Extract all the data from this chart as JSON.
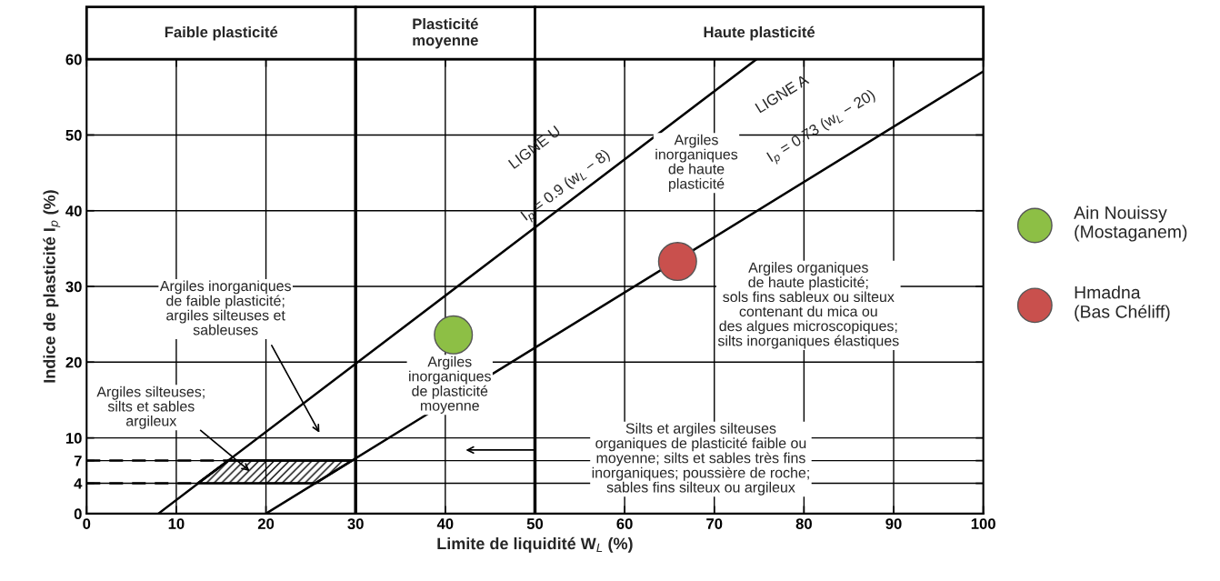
{
  "chart_data": {
    "type": "scatter",
    "xlabel": "Limite de liquidité W$_{L}$ (%)",
    "ylabel": "Indice de plasticité I$_{p}$ (%)",
    "xlim": [
      0,
      100
    ],
    "ylim": [
      0,
      60
    ],
    "xticks": [
      0,
      10,
      20,
      30,
      40,
      50,
      60,
      70,
      80,
      90,
      100
    ],
    "yticks": [
      0,
      4,
      7,
      10,
      20,
      30,
      40,
      50,
      60
    ],
    "grid": true,
    "legend": "right",
    "ref_lines": [
      {
        "axis": "x",
        "value": 30,
        "color": "#000000"
      },
      {
        "axis": "x",
        "value": 50,
        "color": "#000000"
      }
    ],
    "series": [
      {
        "type": "line",
        "name": "LIGNE U",
        "color": "#000000",
        "line_style": "solid",
        "x": [
          8,
          74.7
        ],
        "values": [
          0,
          60
        ]
      },
      {
        "type": "line",
        "name": "LIGNE A",
        "color": "#000000",
        "line_style": "solid",
        "x": [
          20,
          100
        ],
        "values": [
          0,
          58.4
        ]
      },
      {
        "type": "line",
        "color": "#000000",
        "line_style": "dashed",
        "x": [
          0,
          15.8
        ],
        "values": [
          7,
          7
        ]
      },
      {
        "type": "line",
        "color": "#000000",
        "line_style": "dashed",
        "x": [
          0,
          12.4
        ],
        "values": [
          4,
          4
        ]
      },
      {
        "type": "line",
        "color": "#000000",
        "line_style": "solid",
        "x": [
          12.4,
          15.8,
          25.5,
          29.6
        ],
        "values": [
          4,
          7,
          7,
          7
        ],
        "lower": [
          4,
          4,
          4,
          7
        ],
        "upper": [
          4,
          7,
          7,
          7
        ]
      },
      {
        "name": "Ain Nouissy\n(Mostaganem)",
        "marker": "circle",
        "color": "#8dbf45",
        "x": [
          40.9
        ],
        "values": [
          23.6
        ]
      },
      {
        "name": "Hmadna\n(Bas Chéliff)",
        "marker": "circle",
        "color": "#c9504d",
        "x": [
          65.9
        ],
        "values": [
          33.3
        ]
      }
    ],
    "annotations": [
      "Faible plasticité",
      "Plasticité\nmoyenne",
      "Haute plasticité",
      "I$_{p}$ = 0.9 (w$_{L}$ − 8)",
      "I$_{p}$ = 0.73 (w$_{L}$ − 20)",
      "Argiles inorganiques\nde faible plasticité;\nargiles silteuses et\nsableuses",
      "Argiles silteuses;\nsilts et sables\nargileux",
      "Argiles\ninorganiques\nde plasticité\nmoyenne",
      "Argiles\ninorganiques\nde haute\nplasticité",
      "Argiles organiques\nde haute plasticité;\nsols fins sableux ou silteux\ncontenant du mica ou\ndes algues microscopiques;\nsilts inorganiques élastiques",
      "Silts et argiles silteuses\norganiques de plasticité faible ou\nmoyenne; silts et sables très fins\ninorganiques; poussière de roche;\nsables fins silteux ou argileux"
    ]
  }
}
